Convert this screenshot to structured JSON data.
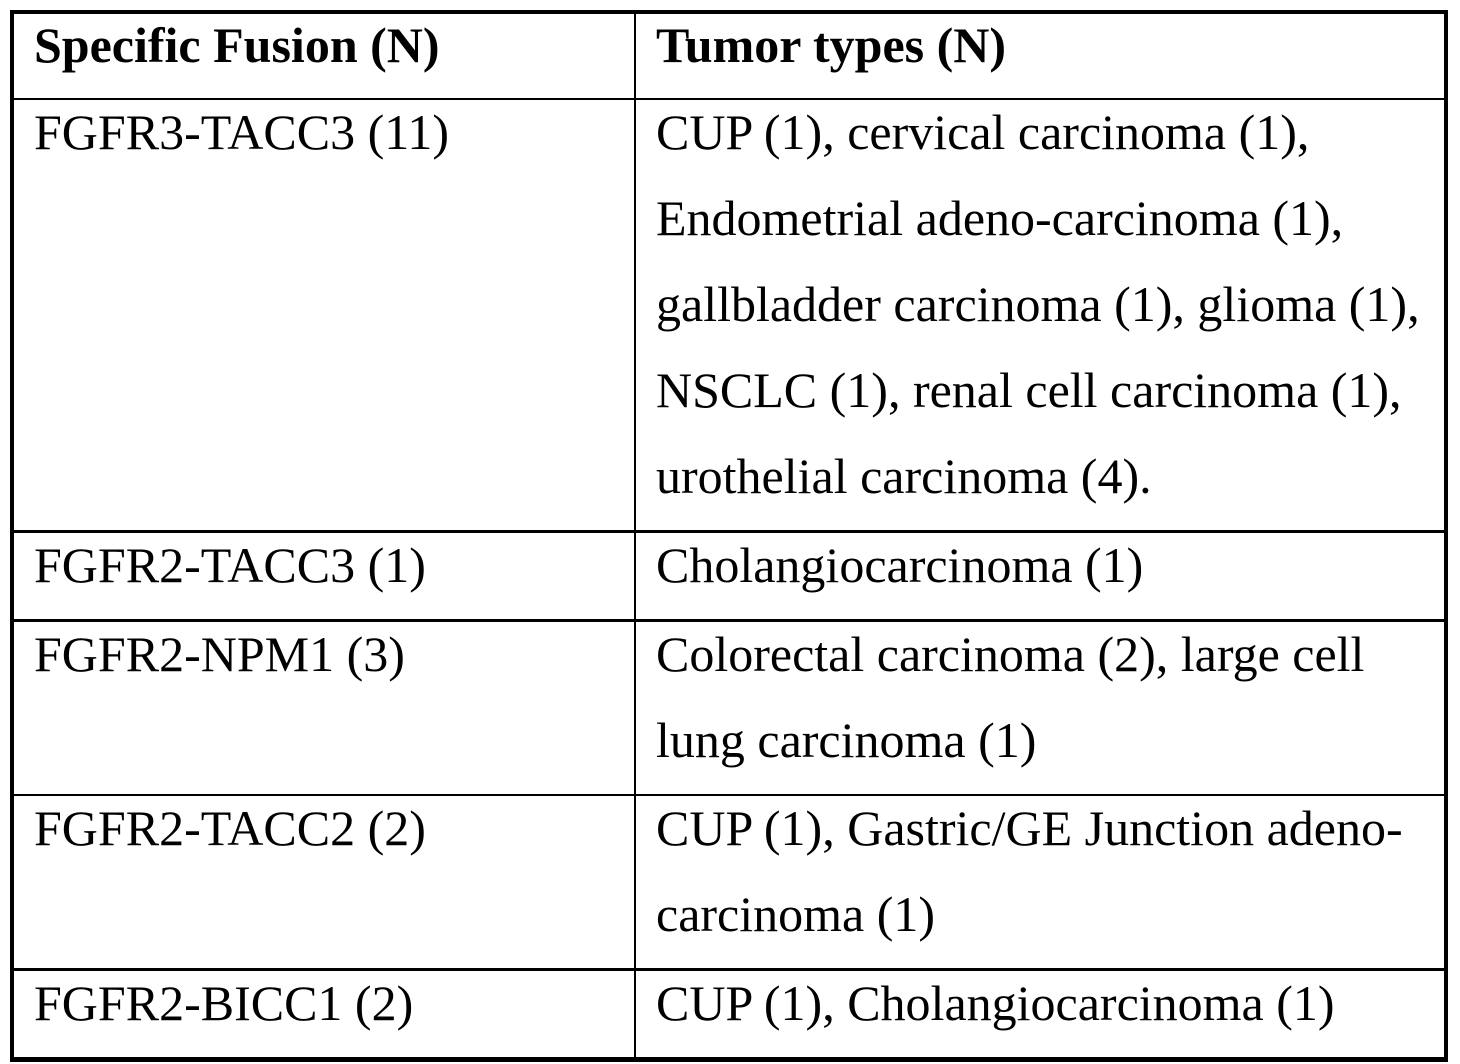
{
  "table": {
    "columns": [
      "Specific Fusion (N)",
      "Tumor types (N)"
    ],
    "rows": [
      {
        "fusion": "FGFR3-TACC3 (11)",
        "tumor_lines": [
          "CUP (1), cervical carcinoma (1),",
          "Endometrial adeno-carcinoma (1),",
          "gallbladder carcinoma (1), glioma (1),",
          "NSCLC (1), renal cell carcinoma (1),",
          "urothelial carcinoma (4)."
        ]
      },
      {
        "fusion": "FGFR2-TACC3 (1)",
        "tumor_lines": [
          "Cholangiocarcinoma (1)"
        ]
      },
      {
        "fusion": "FGFR2-NPM1 (3)",
        "tumor_lines": [
          "Colorectal carcinoma (2), large cell",
          "lung carcinoma (1)"
        ]
      },
      {
        "fusion": "FGFR2-TACC2 (2)",
        "tumor_lines": [
          "CUP (1), Gastric/GE Junction adeno-",
          "carcinoma (1)"
        ]
      },
      {
        "fusion": "FGFR2-BICC1 (2)",
        "tumor_lines": [
          "CUP (1), Cholangiocarcinoma (1)"
        ]
      }
    ]
  },
  "colors": {
    "border": "#000000",
    "text": "#000000",
    "background": "#ffffff"
  }
}
